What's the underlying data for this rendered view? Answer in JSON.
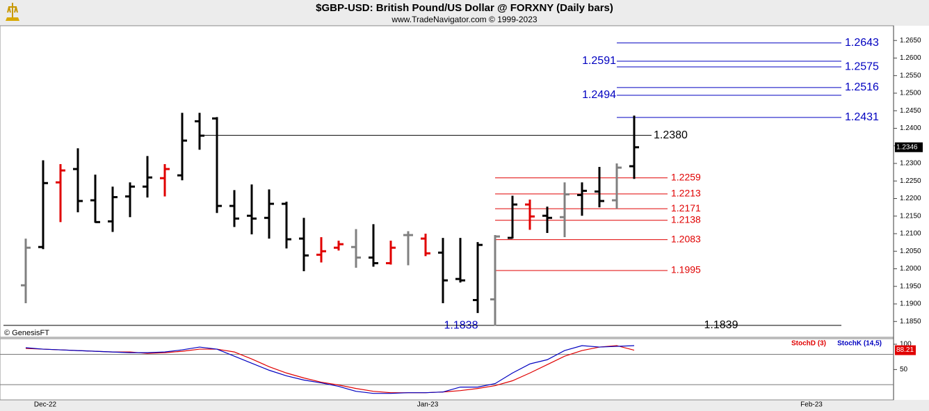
{
  "chart_data": [
    {
      "type": "ohlc",
      "title": "$GBP-USD:  British Pound/US Dollar @ FORXNY  (Daily bars)",
      "subtitle": "www.TradeNavigator.com © 1999-2023",
      "watermark": "© GenesisFT",
      "open": [
        1.1953,
        1.2062,
        1.2246,
        1.2284,
        1.2195,
        1.2135,
        1.2206,
        1.2234,
        1.2258,
        1.2266,
        1.242,
        1.2428,
        1.2179,
        1.2151,
        1.2145,
        1.2185,
        1.2086,
        1.204,
        1.206,
        1.2062,
        1.2032,
        1.2016,
        1.2096,
        1.2086,
        1.2046,
        1.1971,
        1.1911,
        1.1913,
        1.2088,
        1.2183,
        1.2151,
        1.2147,
        1.221,
        1.222,
        1.2195,
        1.2292
      ],
      "high": [
        1.2086,
        1.2309,
        1.2298,
        1.2343,
        1.2268,
        1.2234,
        1.2246,
        1.2321,
        1.2298,
        1.2444,
        1.2444,
        1.2432,
        1.2224,
        1.224,
        1.2226,
        1.2191,
        1.2145,
        1.209,
        1.208,
        1.2113,
        1.2127,
        1.208,
        1.2107,
        1.21,
        1.2088,
        1.2088,
        1.2076,
        1.2096,
        1.2208,
        1.2197,
        1.2177,
        1.2246,
        1.2246,
        1.229,
        1.23,
        1.2436
      ],
      "low": [
        1.1902,
        1.2056,
        1.2133,
        1.2161,
        1.2131,
        1.2105,
        1.2147,
        1.2203,
        1.2206,
        1.2252,
        1.2339,
        1.2159,
        1.2119,
        1.2098,
        1.2086,
        1.2058,
        1.1993,
        1.2018,
        1.2052,
        1.2003,
        1.2006,
        1.2012,
        1.201,
        1.2036,
        1.1902,
        1.1961,
        1.1874,
        1.1838,
        1.2086,
        1.2111,
        1.2102,
        1.209,
        1.2151,
        1.2175,
        1.2171,
        1.2256
      ],
      "close": [
        1.206,
        1.2244,
        1.228,
        1.2193,
        1.2133,
        1.2204,
        1.2234,
        1.226,
        1.2284,
        1.2365,
        1.2379,
        1.2179,
        1.2143,
        1.2143,
        1.2185,
        1.2084,
        1.2038,
        1.205,
        1.207,
        1.2032,
        1.2016,
        1.206,
        1.2096,
        1.2044,
        1.1967,
        1.1967,
        1.2068,
        1.2092,
        1.2183,
        1.2149,
        1.2145,
        1.2212,
        1.2222,
        1.2193,
        1.2288,
        1.2346
      ],
      "colors": [
        "#808080",
        "#000000",
        "#e00000",
        "#000000",
        "#000000",
        "#000000",
        "#000000",
        "#000000",
        "#e00000",
        "#000000",
        "#000000",
        "#000000",
        "#000000",
        "#000000",
        "#000000",
        "#000000",
        "#000000",
        "#e00000",
        "#e00000",
        "#808080",
        "#000000",
        "#e00000",
        "#808080",
        "#e00000",
        "#000000",
        "#000000",
        "#000000",
        "#808080",
        "#000000",
        "#e00000",
        "#000000",
        "#808080",
        "#000000",
        "#000000",
        "#808080",
        "#000000"
      ],
      "levels": [
        {
          "value": 1.2643,
          "color": "#0000c0"
        },
        {
          "value": 1.2591,
          "color": "#0000c0"
        },
        {
          "value": 1.2575,
          "color": "#0000c0"
        },
        {
          "value": 1.2516,
          "color": "#0000c0"
        },
        {
          "value": 1.2494,
          "color": "#0000c0"
        },
        {
          "value": 1.2431,
          "color": "#0000c0"
        },
        {
          "value": 1.238,
          "label": "1.2380",
          "color": "#000000"
        },
        {
          "value": 1.2259,
          "color": "#e00000"
        },
        {
          "value": 1.2213,
          "color": "#e00000"
        },
        {
          "value": 1.2171,
          "color": "#e00000"
        },
        {
          "value": 1.2138,
          "color": "#e00000"
        },
        {
          "value": 1.2083,
          "color": "#e00000"
        },
        {
          "value": 1.1995,
          "color": "#e00000"
        },
        {
          "value": 1.1838,
          "color": "#0000c0"
        },
        {
          "value": 1.1839,
          "color": "#000000"
        }
      ],
      "ylim": [
        1.1805,
        1.2692
      ],
      "yticks": [
        {
          "value": 1.185,
          "label": "1.1850"
        },
        {
          "value": 1.19,
          "label": "1.1900"
        },
        {
          "value": 1.195,
          "label": "1.1950"
        },
        {
          "value": 1.2,
          "label": "1.2000"
        },
        {
          "value": 1.205,
          "label": "1.2050"
        },
        {
          "value": 1.21,
          "label": "1.2100"
        },
        {
          "value": 1.215,
          "label": "1.2150"
        },
        {
          "value": 1.22,
          "label": "1.2200"
        },
        {
          "value": 1.225,
          "label": "1.2250"
        },
        {
          "value": 1.23,
          "label": "1.2300"
        },
        {
          "value": 1.235,
          "label": "1.2350"
        },
        {
          "value": 1.24,
          "label": "1.2400"
        },
        {
          "value": 1.245,
          "label": "1.2450"
        },
        {
          "value": 1.25,
          "label": "1.2500"
        },
        {
          "value": 1.255,
          "label": "1.2550"
        },
        {
          "value": 1.26,
          "label": "1.2600"
        },
        {
          "value": 1.265,
          "label": "1.2650"
        }
      ]
    },
    {
      "type": "line",
      "series": [
        {
          "name": "StochD (3)",
          "color": "#e00000",
          "values": [
            91.7,
            90.3,
            88.9,
            87.5,
            86.1,
            84.7,
            84.7,
            81.9,
            83.3,
            86.1,
            90.3,
            90.3,
            84.7,
            70.8,
            55.6,
            43.1,
            33.3,
            25,
            19.4,
            12.5,
            6.9,
            4.2,
            4.2,
            4.2,
            5.6,
            8.3,
            12.5,
            18.1,
            27.8,
            43.1,
            59.7,
            76.4,
            87.5,
            94.4,
            97.2,
            88.21
          ]
        },
        {
          "name": "StochK (14,5)",
          "color": "#0000c0",
          "values": [
            93.1,
            90.3,
            88.9,
            87.5,
            86.1,
            84.7,
            83.3,
            83.3,
            84.7,
            88.9,
            94.4,
            90.3,
            76.4,
            62.5,
            48.6,
            37.5,
            29.2,
            23.6,
            16.7,
            6.9,
            2.8,
            2.8,
            4.2,
            4.2,
            5.6,
            15.3,
            15.3,
            22.2,
            43.1,
            61.1,
            69.4,
            87.5,
            97.2,
            94.4,
            95.8,
            97.2
          ]
        }
      ],
      "levels": [
        80,
        20
      ],
      "ylim": [
        -10,
        111
      ],
      "yticks": [
        50,
        100
      ],
      "xlabels": [
        "Dec-22",
        "Jan-23",
        "Feb-23"
      ]
    }
  ]
}
